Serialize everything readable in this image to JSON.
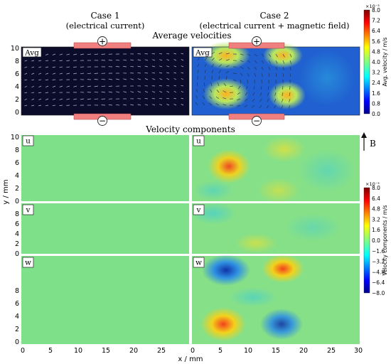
{
  "cases": [
    {
      "title": "Case 1",
      "subtitle": "(electrical current)"
    },
    {
      "title": "Case 2",
      "subtitle": "(electrical current + magnetic field)"
    }
  ],
  "section_avg": "Average velocities",
  "section_comp": "Velocity components",
  "panel_tags": {
    "avg": "Avg",
    "u": "u",
    "v": "v",
    "w": "w"
  },
  "electrodes": {
    "plus": "+",
    "minus": "−"
  },
  "axes": {
    "xlabel": "x / mm",
    "ylabel": "y / mm",
    "x_ticks": [
      "0",
      "5",
      "10",
      "15",
      "20",
      "25",
      "0",
      "5",
      "10",
      "15",
      "20",
      "25",
      "30"
    ],
    "y_ticks": [
      "0",
      "2",
      "4",
      "6",
      "8",
      "10"
    ],
    "y_ticks_short": [
      "0",
      "2",
      "4",
      "6",
      "8"
    ]
  },
  "field_arrow_label": "B",
  "colorbar_avg": {
    "exponent": "×10⁻³",
    "label": "Avg. velocity / m/s",
    "ticks": [
      "8.0",
      "7.2",
      "6.4",
      "5.6",
      "4.8",
      "4.0",
      "3.2",
      "2.4",
      "1.6",
      "0.8",
      "0.0"
    ]
  },
  "colorbar_comp": {
    "exponent": "×10⁻³",
    "label": "Velocity components / m/s",
    "ticks": [
      "8.0",
      "6.4",
      "4.8",
      "3.2",
      "1.6",
      "0.0",
      "−1.6",
      "−3.2",
      "−4.8",
      "−6.4",
      "−8.0"
    ]
  },
  "colors": {
    "electrode": "#f08080",
    "neutral_field": "#7fe08a",
    "case1_bg": "#0b0b2a"
  }
}
